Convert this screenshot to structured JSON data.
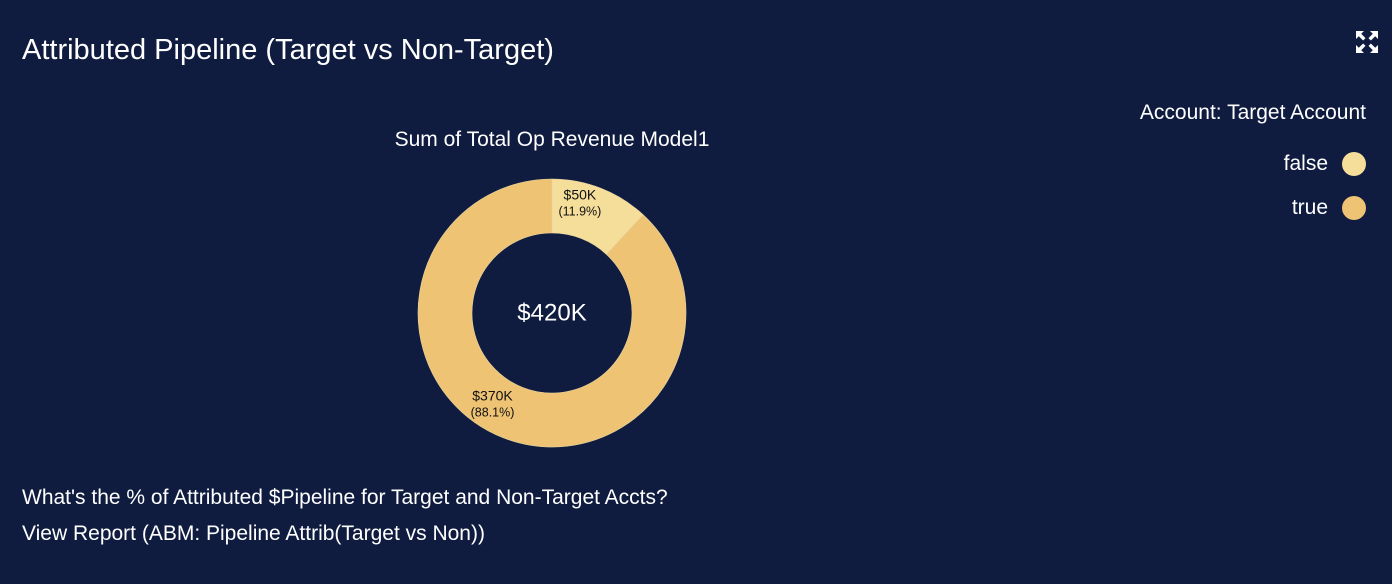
{
  "card": {
    "title": "Attributed Pipeline (Target vs Non-Target)",
    "expand_icon": "expand-icon",
    "question": "What's the % of Attributed $Pipeline for Target and Non-Target Accts?",
    "report_link": "View Report (ABM: Pipeline Attrib(Target vs Non))"
  },
  "legend": {
    "title": "Account: Target Account",
    "items": [
      {
        "label": "false",
        "color": "#f5de9a"
      },
      {
        "label": "true",
        "color": "#eec374"
      }
    ]
  },
  "chart_data": {
    "type": "pie",
    "variant": "donut",
    "title": "Sum of Total Op Revenue Model1",
    "total_label": "$420K",
    "total": 420,
    "unit": "thousand USD",
    "legend_title": "Account: Target Account",
    "legend_position": "top-right",
    "slices": [
      {
        "category": "false",
        "value": 50,
        "value_label": "$50K",
        "percent_label": "(11.9%)",
        "color": "#f5de9a"
      },
      {
        "category": "true",
        "value": 370,
        "value_label": "$370K",
        "percent_label": "(88.1%)",
        "color": "#eec374"
      }
    ]
  }
}
